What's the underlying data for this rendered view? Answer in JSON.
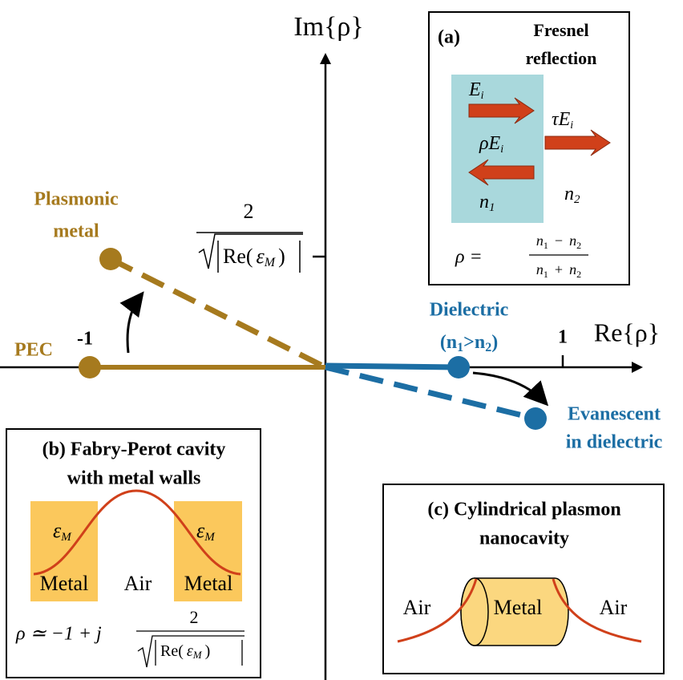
{
  "axes": {
    "vertical_label": "Im{ρ}",
    "horizontal_label": "Re{ρ}",
    "tick_minus_one": "-1",
    "tick_one": "1",
    "im_tick_label": {
      "numerator": "2",
      "denominator": {
        "prefix": "Re(",
        "symbol": "ε",
        "sub": "M",
        "suffix": ")"
      }
    }
  },
  "points": {
    "pec": "PEC",
    "plasmonic": [
      "Plasmonic",
      "metal"
    ],
    "dielectric": {
      "line1": "Dielectric",
      "line2": {
        "open": "(n",
        "sub1": "1",
        "mid": ">n",
        "sub2": "2",
        "close": ")"
      }
    },
    "evanescent": [
      "Evanescent",
      "in dielectric"
    ]
  },
  "panel_a": {
    "label": "(a)",
    "title": [
      "Fresnel",
      "reflection"
    ],
    "incident": {
      "base": "E",
      "sub": "i"
    },
    "reflected": {
      "coef": "ρ",
      "base": "E",
      "sub": "i"
    },
    "transmitted": {
      "coef": "τ",
      "base": "E",
      "sub": "i"
    },
    "medium1": {
      "base": "n",
      "sub": "1"
    },
    "medium2": {
      "base": "n",
      "sub": "2"
    },
    "formula": {
      "lhs": "ρ =",
      "numerator": {
        "a": "n",
        "a_sub": "1",
        "op": "−",
        "b": "n",
        "b_sub": "2"
      },
      "denominator": {
        "a": "n",
        "a_sub": "1",
        "op": "+",
        "b": "n",
        "b_sub": "2"
      }
    }
  },
  "panel_b": {
    "title": [
      "(b) Fabry-Perot cavity",
      "with metal walls"
    ],
    "epsilons": [
      {
        "symbol": "ε",
        "sub": "M"
      },
      {
        "symbol": "ε",
        "sub": "M"
      }
    ],
    "materials": [
      "Metal",
      "Air",
      "Metal"
    ],
    "formula": {
      "lhs": "ρ ≃ −1 + j",
      "numerator": "2",
      "denominator": {
        "prefix": "Re(",
        "symbol": "ε",
        "sub": "M",
        "suffix": ")"
      }
    }
  },
  "panel_c": {
    "title": [
      "(c) Cylindrical plasmon",
      "nanocavity"
    ],
    "labels": [
      "Air",
      "Metal",
      "Air"
    ]
  }
}
